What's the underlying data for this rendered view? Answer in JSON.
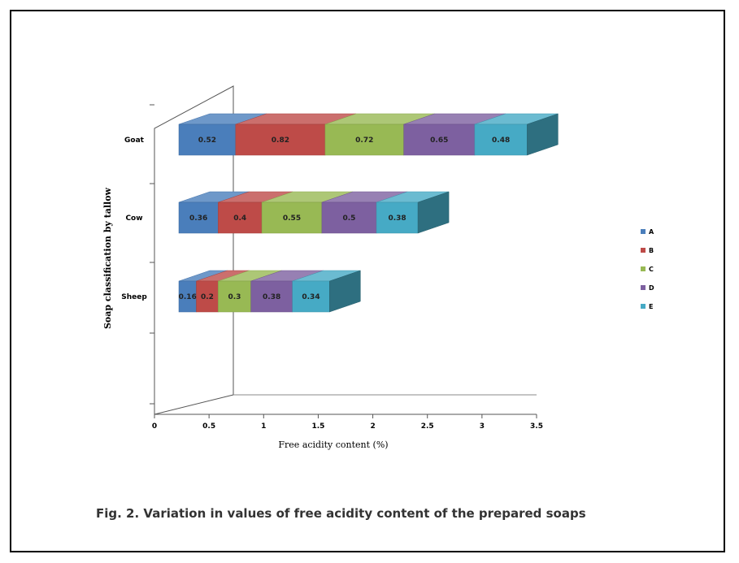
{
  "caption": "Fig. 2. Variation in values of free acidity content of the prepared soaps",
  "chart_data": {
    "type": "bar",
    "orientation": "horizontal",
    "stacked": true,
    "three_d": true,
    "title": "",
    "xlabel": "Free acidity content (%)",
    "ylabel": "Soap classification by tallow",
    "xlim": [
      0,
      3.5
    ],
    "x_ticks": [
      "0",
      "0.5",
      "1",
      "1.5",
      "2",
      "2.5",
      "3",
      "3.5"
    ],
    "categories": [
      "Goat",
      "Cow",
      "Sheep"
    ],
    "category_labels": [
      "Goat",
      "Cow",
      "Sheep"
    ],
    "legend_position": "right",
    "series": [
      {
        "name": "A",
        "color": "#4a7ebb",
        "values": [
          0.52,
          0.36,
          0.16
        ],
        "labels": [
          "0.52",
          "0.36",
          "0.16"
        ]
      },
      {
        "name": "B",
        "color": "#be4b48",
        "values": [
          0.82,
          0.4,
          0.2
        ],
        "labels": [
          "0.82",
          "0.4",
          "0.2"
        ]
      },
      {
        "name": "C",
        "color": "#98b954",
        "values": [
          0.72,
          0.55,
          0.3
        ],
        "labels": [
          "0.72",
          "0.55",
          "0.3"
        ]
      },
      {
        "name": "D",
        "color": "#7d60a0",
        "values": [
          0.65,
          0.5,
          0.38
        ],
        "labels": [
          "0.65",
          "0.5",
          "0.38"
        ]
      },
      {
        "name": "E",
        "color": "#46aac5",
        "values": [
          0.48,
          0.38,
          0.34
        ],
        "labels": [
          "0.48",
          "0.38",
          "0.34"
        ]
      }
    ]
  }
}
